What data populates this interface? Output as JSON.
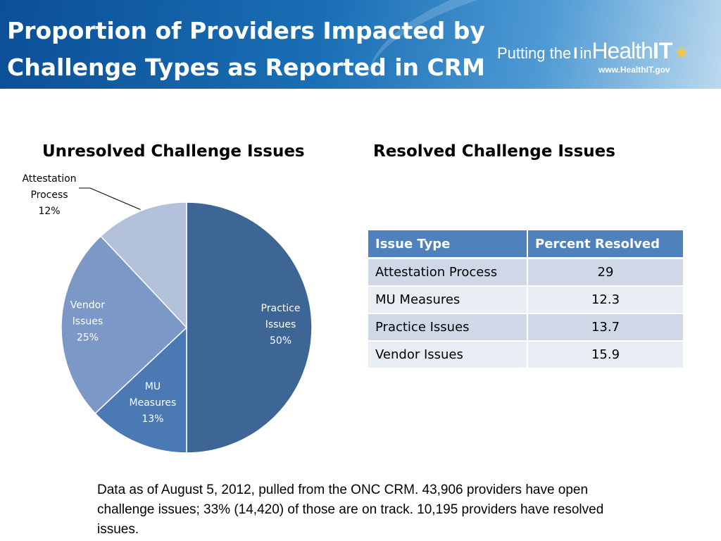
{
  "header": {
    "title_line1": "Proportion of Providers Impacted by",
    "title_line2": "Challenge Types as Reported in CRM",
    "logo": {
      "text_putting": "Putting the",
      "text_i": "I",
      "text_in": "in",
      "text_health": "Health",
      "text_it": "IT",
      "url": "www.HealthIT.gov",
      "star_icon": "star-icon"
    }
  },
  "chart_data": [
    {
      "type": "pie",
      "title": "Unresolved Challenge Issues",
      "slices": [
        {
          "label_lines": [
            "Practice",
            "Issues"
          ],
          "value": 50,
          "percent_label": "50%",
          "color": "#3d6697"
        },
        {
          "label_lines": [
            "MU",
            "Measures"
          ],
          "value": 13,
          "percent_label": "13%",
          "color": "#4a79b3"
        },
        {
          "label_lines": [
            "Vendor",
            "Issues"
          ],
          "value": 25,
          "percent_label": "25%",
          "color": "#7b98c6"
        },
        {
          "label_lines": [
            "Attestation",
            "Process"
          ],
          "value": 12,
          "percent_label": "12%",
          "color": "#b3c1db"
        }
      ]
    },
    {
      "type": "table",
      "title": "Resolved Challenge Issues",
      "columns": [
        "Issue Type",
        "Percent Resolved"
      ],
      "rows": [
        [
          "Attestation Process",
          "29"
        ],
        [
          "MU Measures",
          "12.3"
        ],
        [
          "Practice Issues",
          "13.7"
        ],
        [
          "Vendor Issues",
          "15.9"
        ]
      ]
    }
  ],
  "footnote": "Data as of August 5, 2012, pulled from the ONC CRM. 43,906 providers have open challenge issues; 33% (14,420) of those are on track. 10,195 providers have resolved issues.",
  "colors": {
    "banner_dark": "#0b4f97",
    "table_header": "#4f81bd",
    "table_row_odd": "#d0d8e8",
    "table_row_even": "#e9edf4"
  }
}
